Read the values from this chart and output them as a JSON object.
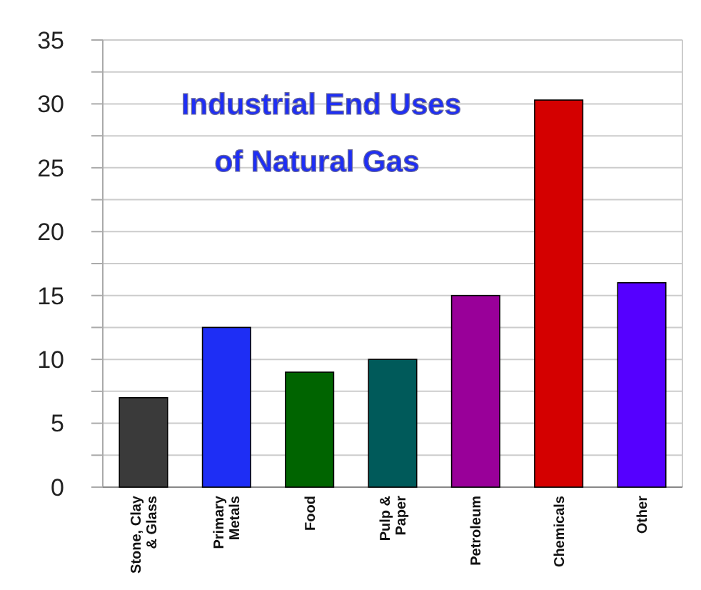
{
  "chart_data": {
    "type": "bar",
    "title": "Industrial End Uses\nof Natural Gas",
    "categories": [
      "Stone, Clay\n& Glass",
      "Primary\nMetals",
      "Food",
      "Pulp &\nPaper",
      "Petroleum",
      "Chemicals",
      "Other"
    ],
    "values": [
      7,
      12.5,
      9,
      10,
      15,
      30.3,
      16
    ],
    "colors": [
      "#3a3a3a",
      "#1e2ef5",
      "#006400",
      "#005a5a",
      "#990099",
      "#d40000",
      "#5500ff"
    ],
    "ylim": [
      0,
      35
    ],
    "yticks": [
      0,
      {
        "value": 2.5,
        "label": null
      },
      5,
      {
        "value": 7.5,
        "label": null
      },
      10,
      {
        "value": 12.5,
        "label": null
      },
      15,
      {
        "value": 17.5,
        "label": null
      },
      20,
      {
        "value": 22.5,
        "label": null
      },
      25,
      {
        "value": 27.5,
        "label": null
      },
      30,
      {
        "value": 32.5,
        "label": null
      },
      35
    ],
    "grid": true
  }
}
